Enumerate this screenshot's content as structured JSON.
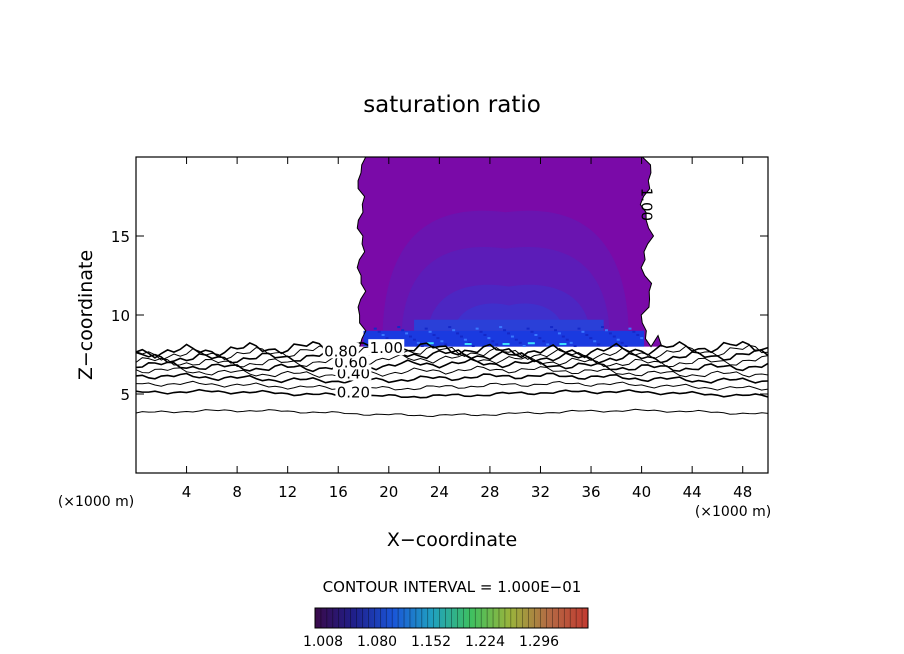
{
  "chart_data": {
    "type": "heatmap",
    "title": "saturation ratio",
    "xlabel": "X−coordinate",
    "ylabel": "Z−coordinate",
    "x_unit_left": "(×1000 m)",
    "x_unit_right": "(×1000 m)",
    "xlim": [
      0,
      50
    ],
    "ylim": [
      0,
      20
    ],
    "x_ticks": [
      4,
      8,
      12,
      16,
      20,
      24,
      28,
      32,
      36,
      40,
      44,
      48
    ],
    "y_ticks": [
      5,
      10,
      15
    ],
    "contour_labels": [
      {
        "text": "0.20",
        "x": 17.2,
        "y": 5.1
      },
      {
        "text": "0.40",
        "x": 17.2,
        "y": 6.3
      },
      {
        "text": "0.60",
        "x": 17.0,
        "y": 7.0
      },
      {
        "text": "0.80",
        "x": 16.2,
        "y": 7.7
      },
      {
        "text": "1.00",
        "x": 19.8,
        "y": 7.9
      },
      {
        "text": "1.00",
        "x": 40.4,
        "y": 17.0
      }
    ],
    "contour_interval_text": "CONTOUR INTERVAL = 1.000E−01",
    "colorbar": {
      "ticks": [
        "1.008",
        "1.080",
        "1.152",
        "1.224",
        "1.296"
      ],
      "colors": [
        "#3a0a4a",
        "#1f1f8a",
        "#1a55d8",
        "#20a0c0",
        "#3ec060",
        "#9ab43c",
        "#b46a44",
        "#c23a30"
      ]
    },
    "plume": {
      "x_range": [
        17.5,
        41
      ],
      "z_range": [
        8,
        20
      ],
      "fill_color": "#7a0aa8",
      "core_color": "#1a3ae0"
    },
    "contour_lines_z": [
      3.8,
      5.0,
      5.5,
      6.0,
      6.4,
      6.8,
      7.1,
      7.4,
      7.65,
      7.85
    ]
  }
}
